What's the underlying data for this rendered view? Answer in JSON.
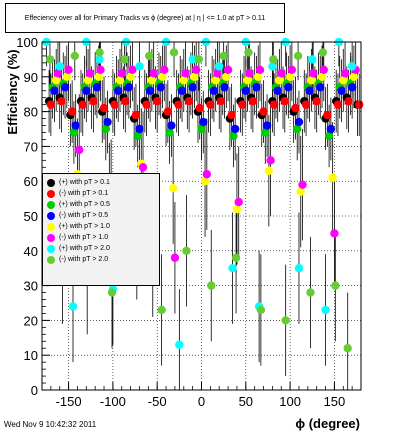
{
  "title": "Effeciency over all for Primary Tracks vs ϕ (degree) at | η | <= 1.0 at pT > 0.11",
  "datestamp": "Wed Nov  9 10:42:32 2011",
  "legend": {
    "items": [
      {
        "label": "(+) with pT > 0.1",
        "color": "#000000"
      },
      {
        "label": "(-) with pT > 0.1",
        "color": "#ff0000"
      },
      {
        "label": "(+) with pT > 0.5",
        "color": "#00cc00"
      },
      {
        "label": "(-) with pT > 0.5",
        "color": "#0000ff"
      },
      {
        "label": "(+) with pT > 1.0",
        "color": "#ffff00"
      },
      {
        "label": "(-) with pT > 1.0",
        "color": "#ff00ff"
      },
      {
        "label": "(+) with pT > 2.0",
        "color": "#00ffff"
      },
      {
        "label": "(-) with pT > 2.0",
        "color": "#66cc33"
      }
    ]
  },
  "chart_data": {
    "type": "scatter",
    "title": "Effeciency over all for Primary Tracks vs ϕ (degree) at | η | <= 1.0 at pT > 0.11",
    "xlabel": "ϕ (degree)",
    "ylabel": "Efficiency (%)",
    "xlim": [
      -180,
      180
    ],
    "ylim": [
      0,
      100
    ],
    "xticks": [
      -150,
      -100,
      -50,
      0,
      50,
      100,
      150
    ],
    "yticks": [
      0,
      10,
      20,
      30,
      40,
      50,
      60,
      70,
      80,
      90,
      100
    ],
    "grid": true,
    "legend_position": "left-middle",
    "series": [
      {
        "name": "(+) with pT > 0.1",
        "color": "#000000",
        "x": [
          -172,
          -160,
          -148,
          -136,
          -124,
          -112,
          -100,
          -88,
          -76,
          -64,
          -52,
          -40,
          -28,
          -16,
          -4,
          8,
          20,
          32,
          44,
          56,
          68,
          80,
          92,
          104,
          116,
          128,
          140,
          152,
          164,
          176
        ],
        "y": [
          83,
          84,
          79,
          83,
          84,
          80,
          83,
          84,
          78,
          83,
          84,
          79,
          83,
          84,
          80,
          83,
          84,
          78,
          83,
          84,
          79,
          83,
          84,
          80,
          83,
          84,
          78,
          83,
          84,
          82
        ]
      },
      {
        "name": "(-) with pT > 0.1",
        "color": "#ff0000",
        "x": [
          -170,
          -158,
          -146,
          -134,
          -122,
          -110,
          -98,
          -86,
          -74,
          -62,
          -50,
          -38,
          -26,
          -14,
          -2,
          10,
          22,
          34,
          46,
          58,
          70,
          82,
          94,
          106,
          118,
          130,
          142,
          154,
          166,
          178
        ],
        "y": [
          82,
          83,
          80,
          82,
          83,
          81,
          82,
          83,
          79,
          82,
          83,
          80,
          82,
          83,
          81,
          82,
          83,
          79,
          82,
          83,
          80,
          82,
          83,
          81,
          82,
          83,
          79,
          82,
          83,
          82
        ]
      },
      {
        "name": "(+) with pT > 0.5",
        "color": "#00cc00",
        "x": [
          -168,
          -156,
          -144,
          -132,
          -120,
          -108,
          -96,
          -84,
          -72,
          -60,
          -48,
          -36,
          -24,
          -12,
          0,
          12,
          24,
          36,
          48,
          60,
          72,
          84,
          96,
          108,
          120,
          132,
          144,
          156,
          168
        ],
        "y": [
          87,
          88,
          74,
          87,
          88,
          75,
          87,
          88,
          73,
          87,
          88,
          74,
          87,
          88,
          75,
          87,
          88,
          73,
          87,
          88,
          74,
          87,
          88,
          75,
          87,
          88,
          73,
          87,
          88
        ]
      },
      {
        "name": "(-) with pT > 0.5",
        "color": "#0000ff",
        "x": [
          -166,
          -154,
          -142,
          -130,
          -118,
          -106,
          -94,
          -82,
          -70,
          -58,
          -46,
          -34,
          -22,
          -10,
          2,
          14,
          26,
          38,
          50,
          62,
          74,
          86,
          98,
          110,
          122,
          134,
          146,
          158,
          170
        ],
        "y": [
          86,
          87,
          76,
          86,
          87,
          77,
          86,
          87,
          75,
          86,
          87,
          76,
          86,
          87,
          77,
          86,
          87,
          75,
          86,
          87,
          76,
          86,
          87,
          77,
          86,
          87,
          75,
          86,
          87
        ]
      },
      {
        "name": "(+) with pT > 1.0",
        "color": "#ffff00",
        "x": [
          -164,
          -152,
          -140,
          -128,
          -116,
          -104,
          -92,
          -80,
          -68,
          -56,
          -44,
          -32,
          -20,
          -8,
          4,
          16,
          28,
          40,
          52,
          64,
          76,
          88,
          100,
          112,
          124,
          136,
          148,
          160,
          172
        ],
        "y": [
          89,
          90,
          62,
          89,
          90,
          55,
          89,
          90,
          65,
          89,
          90,
          58,
          89,
          90,
          60,
          89,
          90,
          52,
          89,
          90,
          63,
          89,
          90,
          57,
          89,
          90,
          61,
          89,
          90
        ]
      },
      {
        "name": "(-) with pT > 1.0",
        "color": "#ff00ff",
        "x": [
          -162,
          -150,
          -138,
          -126,
          -114,
          -102,
          -90,
          -78,
          -66,
          -54,
          -42,
          -30,
          -18,
          -6,
          6,
          18,
          30,
          42,
          54,
          66,
          78,
          90,
          102,
          114,
          126,
          138,
          150,
          162,
          174
        ],
        "y": [
          91,
          92,
          69,
          91,
          92,
          56,
          91,
          92,
          64,
          91,
          92,
          38,
          91,
          92,
          62,
          91,
          92,
          54,
          91,
          92,
          66,
          91,
          92,
          59,
          91,
          92,
          45,
          91,
          92
        ]
      },
      {
        "name": "(+) with pT > 2.0",
        "color": "#00ffff",
        "x": [
          -175,
          -160,
          -145,
          -130,
          -115,
          -100,
          -85,
          -70,
          -55,
          -40,
          -25,
          -10,
          5,
          20,
          35,
          50,
          65,
          80,
          95,
          110,
          125,
          140,
          155,
          170
        ],
        "y": [
          100,
          93,
          24,
          100,
          95,
          29,
          100,
          93,
          37,
          100,
          13,
          95,
          100,
          93,
          35,
          100,
          24,
          93,
          100,
          35,
          95,
          23,
          100,
          93
        ]
      },
      {
        "name": "(-) with pT > 2.0",
        "color": "#66cc33",
        "x": [
          -171,
          -157,
          -143,
          -129,
          -115,
          -101,
          -87,
          -73,
          -59,
          -45,
          -31,
          -17,
          -3,
          11,
          25,
          39,
          53,
          67,
          81,
          95,
          109,
          123,
          137,
          151,
          165
        ],
        "y": [
          95,
          35,
          96,
          32,
          97,
          28,
          95,
          42,
          96,
          23,
          97,
          40,
          95,
          30,
          96,
          38,
          97,
          23,
          95,
          20,
          96,
          28,
          97,
          30,
          12
        ]
      }
    ]
  }
}
